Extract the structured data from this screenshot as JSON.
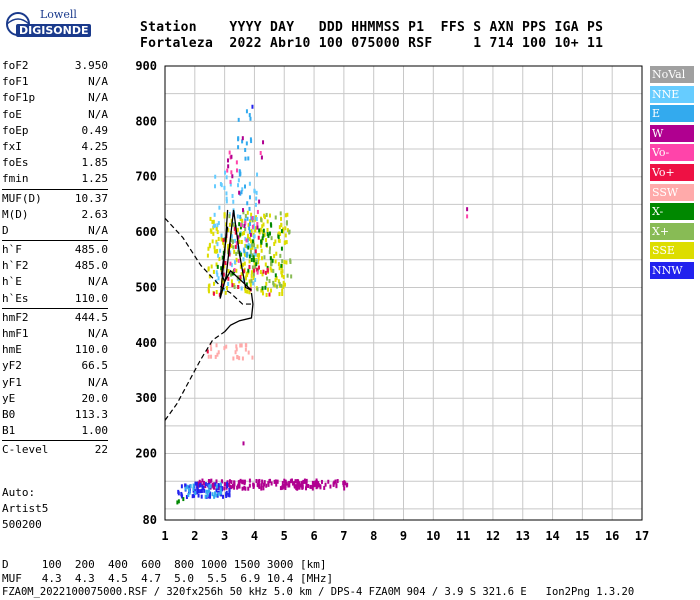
{
  "logo": {
    "brand_top": "Lowell",
    "brand_bottom": "DIGISONDE"
  },
  "header": {
    "line1": "Station    YYYY DAY   DDD HHMMSS P1  FFS S AXN PPS IGA PS",
    "line2": "Fortaleza  2022 Abr10 100 075000 RSF     1 714 100 10+ 11"
  },
  "params_groups": [
    [
      {
        "k": "foF2",
        "v": "3.950"
      },
      {
        "k": "foF1",
        "v": "N/A"
      },
      {
        "k": "foF1p",
        "v": "N/A"
      },
      {
        "k": "foE",
        "v": "N/A"
      },
      {
        "k": "foEp",
        "v": "0.49"
      },
      {
        "k": "fxI",
        "v": "4.25"
      },
      {
        "k": "foEs",
        "v": "1.85"
      },
      {
        "k": "fmin",
        "v": "1.25"
      }
    ],
    [
      {
        "k": "MUF(D)",
        "v": "10.37"
      },
      {
        "k": "M(D)",
        "v": "2.63"
      },
      {
        "k": "D",
        "v": "N/A"
      }
    ],
    [
      {
        "k": "h`F",
        "v": "485.0"
      },
      {
        "k": "h`F2",
        "v": "485.0"
      },
      {
        "k": "h`E",
        "v": "N/A"
      },
      {
        "k": "h`Es",
        "v": "110.0"
      }
    ],
    [
      {
        "k": "hmF2",
        "v": "444.5"
      },
      {
        "k": "hmF1",
        "v": "N/A"
      },
      {
        "k": "hmE",
        "v": "110.0"
      },
      {
        "k": "yF2",
        "v": "66.5"
      },
      {
        "k": "yF1",
        "v": "N/A"
      },
      {
        "k": "yE",
        "v": "20.0"
      },
      {
        "k": "B0",
        "v": "113.3"
      },
      {
        "k": "B1",
        "v": "1.00"
      }
    ],
    [
      {
        "k": "C-level",
        "v": "22"
      }
    ]
  ],
  "auto": {
    "line1": "Auto:",
    "line2": "Artist5",
    "line3": "500200"
  },
  "legend": [
    {
      "label": "NoVal",
      "color": "#a0a0a0"
    },
    {
      "label": "NNE",
      "color": "#66ccff"
    },
    {
      "label": "E",
      "color": "#33aaee"
    },
    {
      "label": "W",
      "color": "#b00090"
    },
    {
      "label": "Vo-",
      "color": "#ff44aa"
    },
    {
      "label": "Vo+",
      "color": "#ee1144"
    },
    {
      "label": "SSW",
      "color": "#ffaaaa"
    },
    {
      "label": "X-",
      "color": "#008800"
    },
    {
      "label": "X+",
      "color": "#88bb55"
    },
    {
      "label": "SSE",
      "color": "#dddd00"
    },
    {
      "label": "NNW",
      "color": "#2222ee"
    }
  ],
  "footer": {
    "line1": "D     100  200  400  600  800 1000 1500 3000 [km]",
    "line2": "MUF   4.3  4.3  4.5  4.7  5.0  5.5  6.9 10.4 [MHz]",
    "line3": "FZA0M_2022100075000.RSF / 320fx256h 50 kHz 5.0 km / DPS-4 FZA0M 904 / 3.9 S 321.6 E   Ion2Png 1.3.20"
  },
  "chart_data": {
    "type": "scatter",
    "xlim": [
      1,
      17
    ],
    "ylim": [
      80,
      900
    ],
    "x_ticks": [
      1,
      2,
      3,
      4,
      5,
      6,
      7,
      8,
      9,
      10,
      11,
      12,
      13,
      14,
      15,
      16,
      17
    ],
    "y_ticks": [
      80,
      200,
      300,
      400,
      500,
      600,
      700,
      800,
      900
    ],
    "grid": true,
    "clusters": [
      {
        "name": "W",
        "color": "#b00090",
        "xr": [
          2.0,
          7.1
        ],
        "yr": [
          140,
          155
        ],
        "n": 190
      },
      {
        "name": "NNW",
        "color": "#2222ee",
        "xr": [
          1.4,
          3.2
        ],
        "yr": [
          125,
          150
        ],
        "n": 70
      },
      {
        "name": "E",
        "color": "#33aaee",
        "xr": [
          1.5,
          3.0
        ],
        "yr": [
          125,
          148
        ],
        "n": 25
      },
      {
        "name": "X-",
        "color": "#008800",
        "xr": [
          1.3,
          1.6
        ],
        "yr": [
          112,
          125
        ],
        "n": 3
      },
      {
        "name": "SSE",
        "color": "#dddd00",
        "xr": [
          2.4,
          5.1
        ],
        "yr": [
          490,
          640
        ],
        "n": 220
      },
      {
        "name": "NNE",
        "color": "#66ccff",
        "xr": [
          2.6,
          4.1
        ],
        "yr": [
          500,
          720
        ],
        "n": 80
      },
      {
        "name": "E",
        "color": "#33aaee",
        "xr": [
          3.4,
          3.9
        ],
        "yr": [
          560,
          830
        ],
        "n": 40
      },
      {
        "name": "X+",
        "color": "#88bb55",
        "xr": [
          3.0,
          5.2
        ],
        "yr": [
          500,
          640
        ],
        "n": 60
      },
      {
        "name": "X-",
        "color": "#008800",
        "xr": [
          2.7,
          4.9
        ],
        "yr": [
          500,
          630
        ],
        "n": 45
      },
      {
        "name": "Vo+",
        "color": "#ee1144",
        "xr": [
          2.6,
          4.5
        ],
        "yr": [
          490,
          620
        ],
        "n": 30
      },
      {
        "name": "Vo-",
        "color": "#ff44aa",
        "xr": [
          3.0,
          4.2
        ],
        "yr": [
          520,
          780
        ],
        "n": 20
      },
      {
        "name": "SSW",
        "color": "#ffaaaa",
        "xr": [
          2.2,
          4.0
        ],
        "yr": [
          375,
          400
        ],
        "n": 25
      },
      {
        "name": "W",
        "color": "#b00090",
        "xr": [
          3.0,
          4.3
        ],
        "yr": [
          590,
          780
        ],
        "n": 15
      }
    ],
    "points": [
      {
        "x": 11.1,
        "y": 645,
        "color": "#b00090"
      },
      {
        "x": 11.1,
        "y": 632,
        "color": "#ff44aa"
      },
      {
        "x": 3.9,
        "y": 830,
        "color": "#2222ee"
      },
      {
        "x": 3.6,
        "y": 222,
        "color": "#b00090"
      },
      {
        "x": 2.4,
        "y": 388,
        "color": "#ee1144"
      }
    ],
    "solid_trace": [
      [
        3.1,
        640
      ],
      [
        3.0,
        560
      ],
      [
        2.85,
        480
      ],
      [
        3.05,
        520
      ],
      [
        3.3,
        640
      ],
      [
        3.5,
        560
      ],
      [
        3.7,
        500
      ],
      [
        3.9,
        495
      ],
      [
        3.6,
        510
      ],
      [
        3.2,
        530
      ],
      [
        3.0,
        510
      ],
      [
        2.9,
        525
      ],
      [
        3.1,
        610
      ]
    ],
    "profile_solid": [
      [
        3.0,
        420
      ],
      [
        3.2,
        432
      ],
      [
        3.5,
        440
      ],
      [
        3.9,
        445
      ],
      [
        3.95,
        470
      ],
      [
        3.9,
        490
      ]
    ],
    "profile_dashed_lower": [
      [
        1.0,
        260
      ],
      [
        1.4,
        290
      ],
      [
        1.8,
        330
      ],
      [
        2.2,
        370
      ],
      [
        2.6,
        405
      ],
      [
        3.0,
        420
      ]
    ],
    "profile_dashed_upper": [
      [
        1.0,
        625
      ],
      [
        1.6,
        590
      ],
      [
        2.2,
        540
      ],
      [
        2.9,
        500
      ],
      [
        3.2,
        490
      ],
      [
        3.6,
        470
      ],
      [
        3.95,
        470
      ]
    ]
  }
}
